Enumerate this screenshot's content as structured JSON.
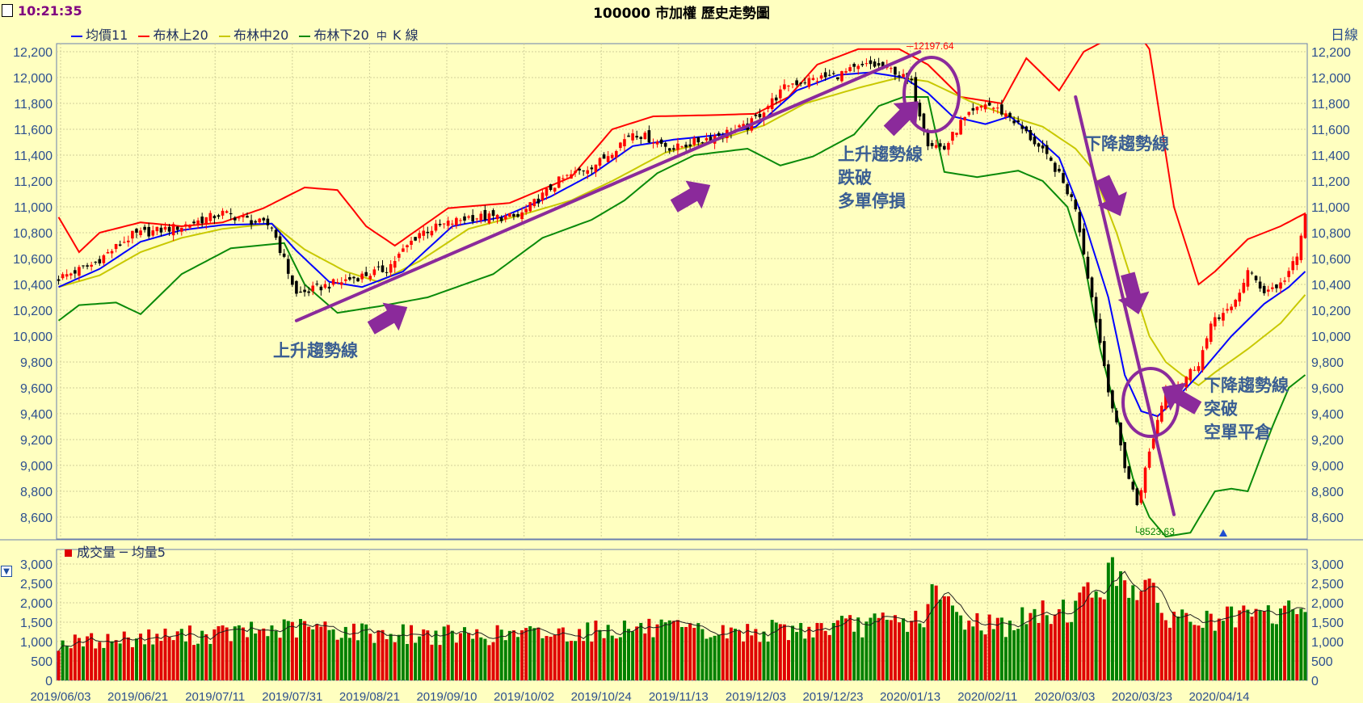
{
  "app": {
    "clock": "10:21:35",
    "title": "100000 市加權  歷史走勢圖",
    "frequency": "日線"
  },
  "legend": [
    {
      "label": "均價11",
      "color": "#0000ff"
    },
    {
      "label": "布林上20",
      "color": "#ff0000"
    },
    {
      "label": "布林中20",
      "color": "#c8c800"
    },
    {
      "label": "布林下20",
      "color": "#0a8a0a"
    }
  ],
  "legend_kline": "K 線",
  "volume_legend": "成交量 ─ 均量5",
  "annotations": {
    "uptrend": "上升趨勢線",
    "break_line1": "上升趨勢線",
    "break_line2": "跌破",
    "break_line3": "多單停損",
    "downtrend": "下降趨勢線",
    "breakout_line1": "下降趨勢線",
    "breakout_line2": "突破",
    "breakout_line3": "空單平倉"
  },
  "colors": {
    "background": "#FFFFC0",
    "up_candle": "#ff0000",
    "down_candle": "#000000",
    "volume_up": "#e00000",
    "volume_down": "#008000",
    "trendline": "#8b2a9b",
    "axis_text": "#2c4f8f"
  },
  "chart_data": [
    {
      "type": "candlestick",
      "title": "100000 市加權  歷史走勢圖",
      "ylim": [
        8450,
        12250
      ],
      "yticks": [
        8600,
        8800,
        9000,
        9200,
        9400,
        9600,
        9800,
        10000,
        10200,
        10400,
        10600,
        10800,
        11000,
        11200,
        11400,
        11600,
        11800,
        12000,
        12200
      ],
      "x_labels": [
        "2019/06/03",
        "2019/06/21",
        "2019/07/11",
        "2019/07/31",
        "2019/08/21",
        "2019/09/10",
        "2019/10/02",
        "2019/10/24",
        "2019/11/13",
        "2019/12/03",
        "2019/12/23",
        "2020/01/13",
        "2020/02/11",
        "2020/03/03",
        "2020/03/23",
        "2020/04/14"
      ],
      "high_label": "12197.64",
      "low_label": "8523.63",
      "close_anchors": [
        [
          0,
          10450
        ],
        [
          8,
          10550
        ],
        [
          18,
          10780
        ],
        [
          30,
          10850
        ],
        [
          40,
          10950
        ],
        [
          52,
          10850
        ],
        [
          58,
          10320
        ],
        [
          64,
          10380
        ],
        [
          72,
          10450
        ],
        [
          80,
          10520
        ],
        [
          88,
          10800
        ],
        [
          100,
          10920
        ],
        [
          112,
          10920
        ],
        [
          122,
          11200
        ],
        [
          132,
          11350
        ],
        [
          140,
          11580
        ],
        [
          150,
          11450
        ],
        [
          160,
          11550
        ],
        [
          168,
          11620
        ],
        [
          178,
          11950
        ],
        [
          190,
          12020
        ],
        [
          198,
          12100
        ],
        [
          204,
          12050
        ],
        [
          208,
          11950
        ],
        [
          212,
          11500
        ],
        [
          216,
          11450
        ],
        [
          220,
          11650
        ],
        [
          226,
          11800
        ],
        [
          232,
          11700
        ],
        [
          238,
          11500
        ],
        [
          243,
          11300
        ],
        [
          248,
          11000
        ],
        [
          252,
          10300
        ],
        [
          256,
          9600
        ],
        [
          260,
          9000
        ],
        [
          263,
          8700
        ],
        [
          266,
          9100
        ],
        [
          270,
          9600
        ],
        [
          274,
          9650
        ],
        [
          278,
          9800
        ],
        [
          282,
          10150
        ],
        [
          286,
          10200
        ],
        [
          290,
          10500
        ],
        [
          294,
          10350
        ],
        [
          298,
          10400
        ],
        [
          302,
          10600
        ],
        [
          304,
          10950
        ]
      ],
      "bollinger_upper_anchors": [
        [
          0,
          10920
        ],
        [
          5,
          10650
        ],
        [
          10,
          10800
        ],
        [
          20,
          10880
        ],
        [
          30,
          10850
        ],
        [
          40,
          10880
        ],
        [
          50,
          10990
        ],
        [
          60,
          11150
        ],
        [
          68,
          11130
        ],
        [
          75,
          10850
        ],
        [
          82,
          10700
        ],
        [
          95,
          10990
        ],
        [
          110,
          11030
        ],
        [
          125,
          11230
        ],
        [
          135,
          11600
        ],
        [
          145,
          11700
        ],
        [
          160,
          11710
        ],
        [
          170,
          11720
        ],
        [
          178,
          11850
        ],
        [
          185,
          12100
        ],
        [
          195,
          12220
        ],
        [
          205,
          12220
        ],
        [
          212,
          12100
        ],
        [
          220,
          11850
        ],
        [
          230,
          11800
        ],
        [
          236,
          12150
        ],
        [
          244,
          11900
        ],
        [
          250,
          12200
        ],
        [
          256,
          12300
        ],
        [
          262,
          12400
        ],
        [
          266,
          12220
        ],
        [
          272,
          11000
        ],
        [
          278,
          10400
        ],
        [
          282,
          10500
        ],
        [
          290,
          10750
        ],
        [
          298,
          10850
        ],
        [
          304,
          10950
        ]
      ],
      "bollinger_mid_anchors": [
        [
          0,
          10380
        ],
        [
          10,
          10470
        ],
        [
          20,
          10650
        ],
        [
          30,
          10760
        ],
        [
          40,
          10830
        ],
        [
          52,
          10870
        ],
        [
          60,
          10670
        ],
        [
          70,
          10500
        ],
        [
          78,
          10420
        ],
        [
          88,
          10580
        ],
        [
          100,
          10830
        ],
        [
          112,
          10930
        ],
        [
          125,
          11050
        ],
        [
          135,
          11200
        ],
        [
          148,
          11420
        ],
        [
          162,
          11530
        ],
        [
          172,
          11630
        ],
        [
          182,
          11800
        ],
        [
          195,
          11920
        ],
        [
          205,
          12000
        ],
        [
          212,
          11970
        ],
        [
          222,
          11820
        ],
        [
          232,
          11700
        ],
        [
          240,
          11620
        ],
        [
          248,
          11450
        ],
        [
          252,
          11300
        ],
        [
          258,
          10800
        ],
        [
          262,
          10400
        ],
        [
          266,
          10000
        ],
        [
          270,
          9800
        ],
        [
          274,
          9700
        ],
        [
          278,
          9620
        ],
        [
          282,
          9720
        ],
        [
          290,
          9900
        ],
        [
          298,
          10100
        ],
        [
          304,
          10320
        ]
      ],
      "bollinger_lower_anchors": [
        [
          0,
          10120
        ],
        [
          5,
          10240
        ],
        [
          14,
          10260
        ],
        [
          20,
          10170
        ],
        [
          30,
          10480
        ],
        [
          42,
          10680
        ],
        [
          55,
          10720
        ],
        [
          60,
          10400
        ],
        [
          68,
          10180
        ],
        [
          78,
          10230
        ],
        [
          90,
          10300
        ],
        [
          106,
          10480
        ],
        [
          118,
          10760
        ],
        [
          130,
          10900
        ],
        [
          138,
          11050
        ],
        [
          146,
          11260
        ],
        [
          155,
          11400
        ],
        [
          168,
          11450
        ],
        [
          176,
          11320
        ],
        [
          184,
          11390
        ],
        [
          194,
          11560
        ],
        [
          200,
          11780
        ],
        [
          206,
          11850
        ],
        [
          212,
          11850
        ],
        [
          216,
          11270
        ],
        [
          224,
          11230
        ],
        [
          234,
          11280
        ],
        [
          240,
          11200
        ],
        [
          246,
          11000
        ],
        [
          250,
          10600
        ],
        [
          254,
          9900
        ],
        [
          258,
          9400
        ],
        [
          262,
          8900
        ],
        [
          266,
          8600
        ],
        [
          270,
          8450
        ],
        [
          276,
          8480
        ],
        [
          282,
          8800
        ],
        [
          286,
          8820
        ],
        [
          290,
          8800
        ],
        [
          296,
          9300
        ],
        [
          300,
          9600
        ],
        [
          304,
          9700
        ]
      ],
      "ma11_anchors": [
        [
          0,
          10380
        ],
        [
          10,
          10520
        ],
        [
          20,
          10730
        ],
        [
          30,
          10820
        ],
        [
          40,
          10860
        ],
        [
          52,
          10870
        ],
        [
          58,
          10660
        ],
        [
          66,
          10420
        ],
        [
          74,
          10380
        ],
        [
          84,
          10500
        ],
        [
          96,
          10850
        ],
        [
          108,
          10920
        ],
        [
          120,
          11080
        ],
        [
          130,
          11250
        ],
        [
          140,
          11470
        ],
        [
          150,
          11520
        ],
        [
          162,
          11560
        ],
        [
          170,
          11620
        ],
        [
          180,
          11900
        ],
        [
          190,
          12020
        ],
        [
          198,
          12040
        ],
        [
          206,
          12000
        ],
        [
          212,
          11880
        ],
        [
          218,
          11700
        ],
        [
          226,
          11640
        ],
        [
          232,
          11700
        ],
        [
          238,
          11550
        ],
        [
          244,
          11380
        ],
        [
          250,
          10900
        ],
        [
          256,
          10300
        ],
        [
          260,
          9700
        ],
        [
          264,
          9420
        ],
        [
          268,
          9380
        ],
        [
          272,
          9500
        ],
        [
          278,
          9700
        ],
        [
          286,
          10000
        ],
        [
          294,
          10250
        ],
        [
          300,
          10380
        ],
        [
          304,
          10500
        ]
      ],
      "trendlines": [
        {
          "from": [
            58,
            10120
          ],
          "to": [
            210,
            12200
          ]
        },
        {
          "from": [
            248,
            11850
          ],
          "to": [
            272,
            8620
          ]
        }
      ]
    },
    {
      "type": "bar",
      "title": "成交量 ─ 均量5",
      "ylim": [
        0,
        3000
      ],
      "yticks": [
        0,
        500,
        1000,
        1500,
        2000,
        2500,
        3000
      ],
      "volume_anchors": [
        [
          0,
          950
        ],
        [
          20,
          1100
        ],
        [
          40,
          1200
        ],
        [
          60,
          1350
        ],
        [
          80,
          1200
        ],
        [
          100,
          1150
        ],
        [
          120,
          1200
        ],
        [
          140,
          1350
        ],
        [
          160,
          1200
        ],
        [
          180,
          1300
        ],
        [
          200,
          1450
        ],
        [
          210,
          1550
        ],
        [
          214,
          2200
        ],
        [
          220,
          1600
        ],
        [
          230,
          1400
        ],
        [
          240,
          1700
        ],
        [
          248,
          1900
        ],
        [
          255,
          2600
        ],
        [
          260,
          2700
        ],
        [
          264,
          2400
        ],
        [
          270,
          1700
        ],
        [
          280,
          1500
        ],
        [
          290,
          1600
        ],
        [
          300,
          1750
        ],
        [
          304,
          2050
        ]
      ]
    }
  ]
}
